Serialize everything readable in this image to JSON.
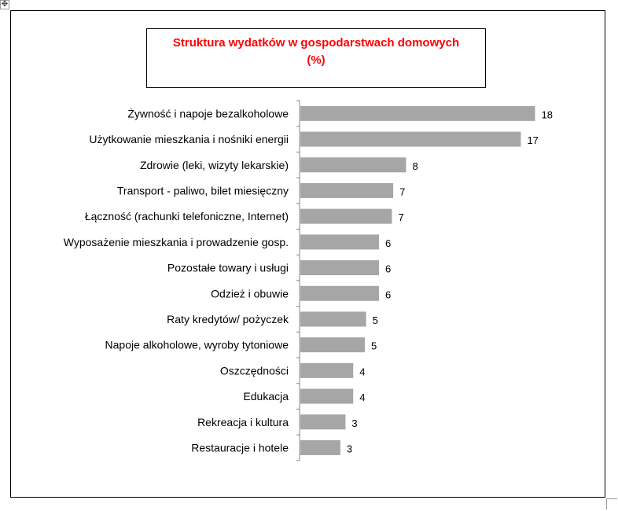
{
  "window": {
    "move_handle_icon": "move-arrows-icon"
  },
  "chart_data": {
    "type": "bar",
    "orientation": "horizontal",
    "title": "Struktura wydatków w gospodarstwach domowych",
    "title_line2": "(%)",
    "title_color": "#ff0000",
    "bar_color": "#a6a6a6",
    "categories": [
      "Żywność i napoje bezalkoholowe",
      "Użytkowanie mieszkania i nośniki energii",
      "Zdrowie (leki, wizyty lekarskie)",
      "Transport - paliwo, bilet miesięczny",
      "Łączność (rachunki telefoniczne, Internet)",
      "Wyposażenie mieszkania i prowadzenie gosp.",
      "Pozostałe towary i usługi",
      "Odzież i obuwie",
      "Raty kredytów/ pożyczek",
      "Napoje alkoholowe, wyroby tytoniowe",
      "Oszczędności",
      "Edukacja",
      "Rekreacja i kultura",
      "Restauracje i hotele"
    ],
    "values": [
      18.2,
      17.1,
      8.2,
      7.2,
      7.1,
      6.1,
      6.1,
      6.1,
      5.1,
      5.0,
      4.1,
      4.1,
      3.5,
      3.1
    ],
    "labels": [
      "18",
      "17",
      "8",
      "7",
      "7",
      "6",
      "6",
      "6",
      "5",
      "5",
      "4",
      "4",
      "3",
      "3"
    ],
    "xlim": [
      0,
      20
    ],
    "grid": false,
    "legend": "none"
  }
}
